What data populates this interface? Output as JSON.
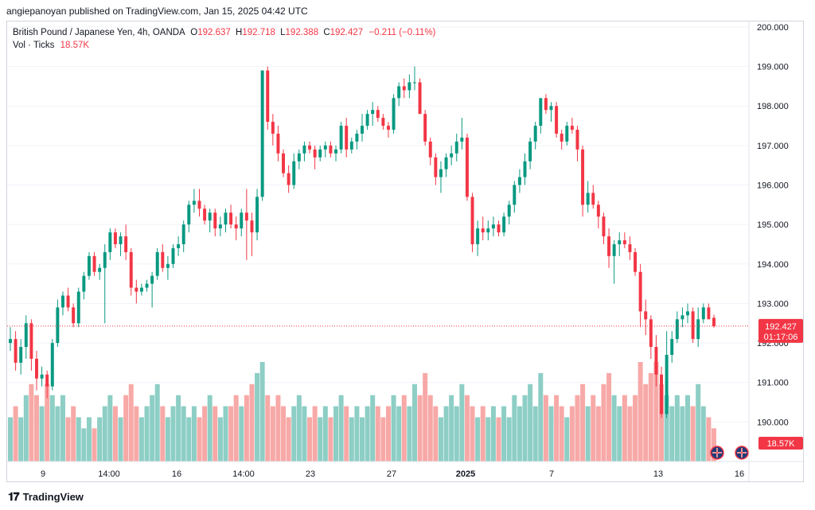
{
  "header": {
    "publisher_line": "angiepanoyan published on TradingView.com, Jan 15, 2025 04:42 UTC"
  },
  "legend": {
    "symbol": "British Pound / Japanese Yen, 4h, OANDA",
    "o_label": "O",
    "o_value": "192.637",
    "h_label": "H",
    "h_value": "192.718",
    "l_label": "L",
    "l_value": "192.388",
    "c_label": "C",
    "c_value": "192.427",
    "change": "−0.211 (−0.11%)",
    "vol_label": "Vol · Ticks",
    "vol_value": "18.57K"
  },
  "footer": {
    "brand": "TradingView"
  },
  "colors": {
    "up": "#089981",
    "down": "#f23645",
    "vol_up": "#8dcec5",
    "vol_down": "#f7a9a7",
    "grid": "#f0f3fa",
    "price_line": "#f23645"
  },
  "chart_data": {
    "type": "candlestick",
    "symbol": "GBPJPY",
    "timeframe": "4h",
    "y_axis": {
      "range": [
        189.0,
        200.1
      ],
      "ticks": [
        "190.000",
        "191.000",
        "192.000",
        "193.000",
        "194.000",
        "195.000",
        "196.000",
        "197.000",
        "198.000",
        "199.000",
        "200.000"
      ]
    },
    "x_axis": {
      "ticks": [
        "9",
        "14:00",
        "16",
        "14:00",
        "23",
        "27",
        "2025",
        "7",
        "13",
        "16"
      ]
    },
    "last_price": {
      "value": "192.427",
      "countdown": "01:17:06",
      "numeric": 192.427
    },
    "volume_label": "18.57K",
    "candles": [
      [
        192.0,
        192.4,
        191.8,
        192.1,
        4
      ],
      [
        192.1,
        192.3,
        191.3,
        191.5,
        5
      ],
      [
        191.5,
        192.1,
        191.2,
        191.9,
        4
      ],
      [
        191.9,
        192.7,
        191.6,
        192.5,
        6
      ],
      [
        192.5,
        192.6,
        191.3,
        191.6,
        7
      ],
      [
        191.6,
        191.8,
        190.8,
        191.1,
        6
      ],
      [
        191.1,
        191.4,
        190.9,
        191.2,
        5
      ],
      [
        191.2,
        191.3,
        190.6,
        190.9,
        7
      ],
      [
        190.9,
        192.1,
        190.8,
        192.0,
        6
      ],
      [
        192.0,
        193.1,
        191.9,
        192.9,
        5
      ],
      [
        192.9,
        193.3,
        192.7,
        193.2,
        6
      ],
      [
        193.2,
        193.4,
        192.8,
        192.9,
        4
      ],
      [
        192.9,
        193.0,
        192.4,
        192.5,
        5
      ],
      [
        192.5,
        193.4,
        192.4,
        193.3,
        4
      ],
      [
        193.3,
        193.8,
        193.1,
        193.7,
        3
      ],
      [
        193.7,
        194.3,
        193.6,
        194.2,
        4
      ],
      [
        194.2,
        194.3,
        193.7,
        193.8,
        3
      ],
      [
        193.8,
        194.0,
        193.6,
        193.9,
        4
      ],
      [
        193.9,
        194.5,
        192.5,
        194.3,
        5
      ],
      [
        194.3,
        194.9,
        194.1,
        194.8,
        6
      ],
      [
        194.8,
        194.9,
        194.4,
        194.5,
        5
      ],
      [
        194.5,
        194.8,
        194.2,
        194.7,
        4
      ],
      [
        194.7,
        195.0,
        194.1,
        194.3,
        6
      ],
      [
        194.3,
        194.4,
        193.2,
        193.4,
        7
      ],
      [
        193.4,
        193.6,
        193.0,
        193.3,
        5
      ],
      [
        193.3,
        193.5,
        193.2,
        193.4,
        4
      ],
      [
        193.4,
        193.6,
        193.3,
        193.5,
        5
      ],
      [
        193.5,
        193.8,
        192.9,
        193.7,
        6
      ],
      [
        193.7,
        194.4,
        193.6,
        194.3,
        7
      ],
      [
        194.3,
        194.5,
        193.8,
        193.9,
        5
      ],
      [
        193.9,
        194.2,
        193.6,
        194.0,
        4
      ],
      [
        194.0,
        194.5,
        193.9,
        194.4,
        5
      ],
      [
        194.4,
        194.7,
        194.2,
        194.5,
        6
      ],
      [
        194.5,
        195.1,
        194.3,
        195.0,
        5
      ],
      [
        195.0,
        195.6,
        194.8,
        195.5,
        4
      ],
      [
        195.5,
        195.9,
        195.3,
        195.6,
        5
      ],
      [
        195.6,
        195.9,
        195.2,
        195.4,
        4
      ],
      [
        195.4,
        195.5,
        195.0,
        195.1,
        5
      ],
      [
        195.1,
        195.4,
        194.8,
        195.3,
        6
      ],
      [
        195.3,
        195.4,
        194.7,
        194.9,
        5
      ],
      [
        194.9,
        195.2,
        194.7,
        195.0,
        4
      ],
      [
        195.0,
        195.4,
        194.8,
        195.3,
        5
      ],
      [
        195.3,
        195.5,
        194.9,
        195.0,
        5
      ],
      [
        195.0,
        195.2,
        194.6,
        194.9,
        6
      ],
      [
        194.9,
        195.4,
        194.7,
        195.3,
        5
      ],
      [
        195.3,
        195.9,
        194.1,
        195.1,
        6
      ],
      [
        195.1,
        195.3,
        194.2,
        194.8,
        7
      ],
      [
        194.8,
        195.9,
        194.6,
        195.7,
        8
      ],
      [
        195.7,
        198.9,
        195.6,
        198.9,
        9
      ],
      [
        198.9,
        199.0,
        197.4,
        197.6,
        6
      ],
      [
        197.6,
        197.8,
        197.0,
        197.3,
        5
      ],
      [
        197.3,
        197.5,
        196.6,
        196.8,
        6
      ],
      [
        196.8,
        196.9,
        196.2,
        196.3,
        5
      ],
      [
        196.3,
        196.5,
        195.8,
        196.0,
        4
      ],
      [
        196.0,
        196.8,
        195.9,
        196.6,
        5
      ],
      [
        196.6,
        196.9,
        196.4,
        196.8,
        6
      ],
      [
        196.8,
        197.1,
        196.6,
        197.0,
        5
      ],
      [
        197.0,
        197.1,
        196.8,
        196.9,
        4
      ],
      [
        196.9,
        197.0,
        196.4,
        196.7,
        5
      ],
      [
        196.7,
        197.0,
        196.6,
        196.9,
        4
      ],
      [
        196.9,
        197.1,
        196.7,
        197.0,
        5
      ],
      [
        197.0,
        197.1,
        196.7,
        196.8,
        4
      ],
      [
        196.8,
        197.0,
        196.6,
        196.9,
        5
      ],
      [
        196.9,
        197.6,
        196.8,
        197.5,
        6
      ],
      [
        197.5,
        197.7,
        196.7,
        196.9,
        5
      ],
      [
        196.9,
        197.2,
        196.8,
        197.1,
        4
      ],
      [
        197.1,
        197.4,
        196.9,
        197.3,
        5
      ],
      [
        197.3,
        197.8,
        197.1,
        197.5,
        4
      ],
      [
        197.5,
        197.9,
        197.4,
        197.8,
        5
      ],
      [
        197.8,
        198.1,
        197.5,
        197.9,
        6
      ],
      [
        197.9,
        198.0,
        197.6,
        197.7,
        5
      ],
      [
        197.7,
        197.8,
        197.4,
        197.5,
        4
      ],
      [
        197.5,
        197.6,
        197.2,
        197.4,
        5
      ],
      [
        197.4,
        198.3,
        197.3,
        198.2,
        6
      ],
      [
        198.2,
        198.6,
        198.0,
        198.5,
        5
      ],
      [
        198.5,
        198.7,
        198.2,
        198.4,
        6
      ],
      [
        198.4,
        198.8,
        198.2,
        198.6,
        5
      ],
      [
        198.6,
        199.0,
        198.4,
        198.6,
        7
      ],
      [
        198.6,
        198.7,
        197.8,
        197.8,
        6
      ],
      [
        197.8,
        197.9,
        197.0,
        197.1,
        8
      ],
      [
        197.1,
        197.2,
        196.5,
        196.7,
        6
      ],
      [
        196.7,
        196.8,
        196.0,
        196.2,
        5
      ],
      [
        196.2,
        196.6,
        195.8,
        196.4,
        4
      ],
      [
        196.4,
        196.8,
        196.2,
        196.7,
        5
      ],
      [
        196.7,
        197.0,
        196.5,
        196.8,
        6
      ],
      [
        196.8,
        197.3,
        196.6,
        197.1,
        5
      ],
      [
        197.1,
        197.7,
        196.9,
        197.2,
        7
      ],
      [
        197.2,
        197.3,
        195.6,
        195.7,
        6
      ],
      [
        195.7,
        195.8,
        194.3,
        194.5,
        5
      ],
      [
        194.5,
        195.1,
        194.2,
        194.9,
        4
      ],
      [
        194.9,
        195.2,
        194.6,
        194.8,
        5
      ],
      [
        194.8,
        195.1,
        194.6,
        194.9,
        4
      ],
      [
        194.9,
        195.2,
        194.7,
        195.0,
        5
      ],
      [
        195.0,
        195.1,
        194.7,
        194.8,
        4
      ],
      [
        194.8,
        195.3,
        194.7,
        195.2,
        5
      ],
      [
        195.2,
        195.6,
        195.0,
        195.5,
        4
      ],
      [
        195.5,
        196.1,
        195.3,
        196.0,
        6
      ],
      [
        196.0,
        196.4,
        195.8,
        196.2,
        5
      ],
      [
        196.2,
        196.8,
        196.0,
        196.6,
        6
      ],
      [
        196.6,
        197.2,
        196.4,
        197.1,
        7
      ],
      [
        197.1,
        197.6,
        196.9,
        197.5,
        5
      ],
      [
        197.5,
        198.2,
        197.3,
        198.2,
        8
      ],
      [
        198.2,
        198.3,
        197.8,
        197.9,
        6
      ],
      [
        197.9,
        198.1,
        197.6,
        198.0,
        5
      ],
      [
        198.0,
        198.1,
        197.2,
        197.3,
        6
      ],
      [
        197.3,
        197.4,
        196.9,
        197.1,
        5
      ],
      [
        197.1,
        197.6,
        197.0,
        197.5,
        4
      ],
      [
        197.5,
        197.7,
        197.3,
        197.4,
        5
      ],
      [
        197.4,
        197.5,
        196.6,
        196.9,
        6
      ],
      [
        196.9,
        197.0,
        195.2,
        195.5,
        7
      ],
      [
        195.5,
        196.1,
        195.3,
        195.8,
        5
      ],
      [
        195.8,
        196.0,
        195.4,
        195.5,
        6
      ],
      [
        195.5,
        195.6,
        194.9,
        195.2,
        5
      ],
      [
        195.2,
        195.3,
        194.5,
        194.7,
        7
      ],
      [
        194.7,
        194.9,
        193.9,
        194.2,
        8
      ],
      [
        194.2,
        194.6,
        193.5,
        194.5,
        6
      ],
      [
        194.5,
        194.8,
        194.2,
        194.6,
        5
      ],
      [
        194.6,
        194.8,
        194.4,
        194.5,
        6
      ],
      [
        194.5,
        194.7,
        194.1,
        194.3,
        5
      ],
      [
        194.3,
        194.4,
        193.7,
        193.8,
        6
      ],
      [
        193.8,
        194.0,
        192.4,
        192.8,
        9
      ],
      [
        192.8,
        193.1,
        192.2,
        192.6,
        7
      ],
      [
        192.6,
        192.7,
        191.6,
        191.9,
        8
      ],
      [
        191.9,
        192.2,
        190.9,
        191.2,
        9
      ],
      [
        191.2,
        191.4,
        190.1,
        190.2,
        7
      ],
      [
        190.2,
        192.3,
        190.1,
        191.7,
        6
      ],
      [
        191.7,
        192.3,
        191.5,
        192.1,
        5
      ],
      [
        192.1,
        192.8,
        192.0,
        192.6,
        6
      ],
      [
        192.6,
        192.9,
        192.4,
        192.7,
        5
      ],
      [
        192.7,
        193.0,
        192.5,
        192.8,
        6
      ],
      [
        192.8,
        192.9,
        192.0,
        192.1,
        5
      ],
      [
        192.1,
        192.9,
        191.9,
        192.6,
        7
      ],
      [
        192.6,
        193.0,
        192.5,
        192.9,
        5
      ],
      [
        192.9,
        193.0,
        192.6,
        192.6,
        4
      ],
      [
        192.637,
        192.718,
        192.388,
        192.427,
        3
      ]
    ]
  }
}
